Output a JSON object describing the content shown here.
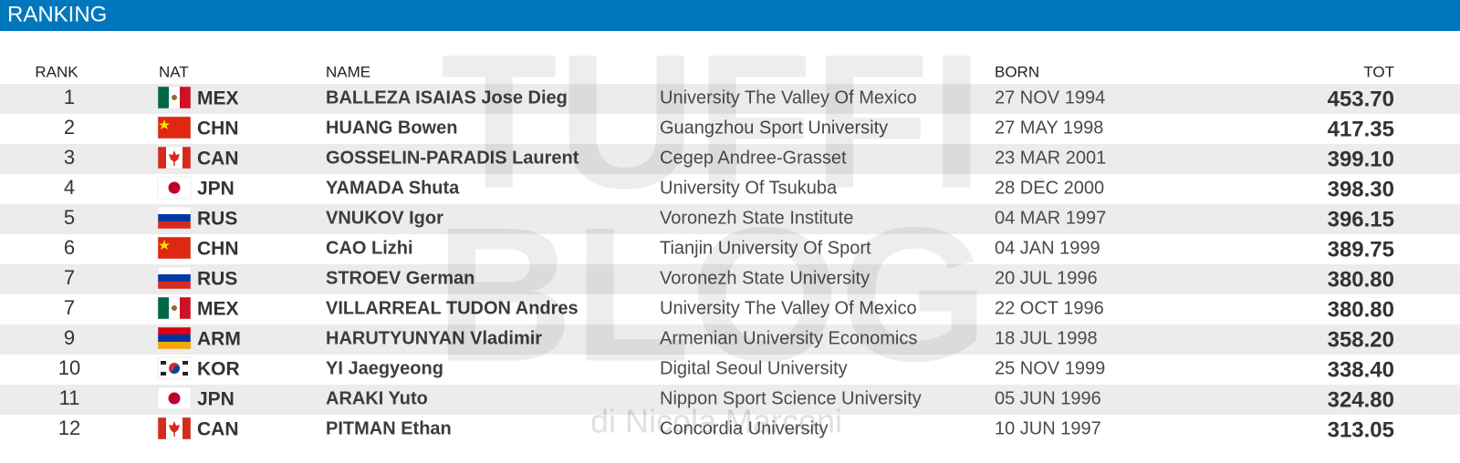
{
  "header": {
    "title": "RANKING"
  },
  "table": {
    "columns": [
      "RANK",
      "NAT",
      "NAME",
      "BORN",
      "TOT"
    ],
    "rows": [
      {
        "rank": 1,
        "nat": "MEX",
        "name": "BALLEZA ISAIAS Jose Dieg",
        "university": "University The Valley Of Mexico",
        "born": "27 NOV 1994",
        "tot": "453.70"
      },
      {
        "rank": 2,
        "nat": "CHN",
        "name": "HUANG Bowen",
        "university": "Guangzhou Sport University",
        "born": "27 MAY 1998",
        "tot": "417.35"
      },
      {
        "rank": 3,
        "nat": "CAN",
        "name": "GOSSELIN-PARADIS Laurent",
        "university": "Cegep Andree-Grasset",
        "born": "23 MAR 2001",
        "tot": "399.10"
      },
      {
        "rank": 4,
        "nat": "JPN",
        "name": "YAMADA Shuta",
        "university": "University Of Tsukuba",
        "born": "28 DEC 2000",
        "tot": "398.30"
      },
      {
        "rank": 5,
        "nat": "RUS",
        "name": "VNUKOV Igor",
        "university": "Voronezh State Institute",
        "born": "04 MAR 1997",
        "tot": "396.15"
      },
      {
        "rank": 6,
        "nat": "CHN",
        "name": "CAO Lizhi",
        "university": "Tianjin University Of Sport",
        "born": "04 JAN 1999",
        "tot": "389.75"
      },
      {
        "rank": 7,
        "nat": "RUS",
        "name": "STROEV German",
        "university": "Voronezh State University",
        "born": "20 JUL 1996",
        "tot": "380.80"
      },
      {
        "rank": 7,
        "nat": "MEX",
        "name": "VILLARREAL TUDON Andres",
        "university": "University The Valley Of Mexico",
        "born": "22 OCT 1996",
        "tot": "380.80"
      },
      {
        "rank": 9,
        "nat": "ARM",
        "name": "HARUTYUNYAN Vladimir",
        "university": "Armenian University Economics",
        "born": "18 JUL 1998",
        "tot": "358.20"
      },
      {
        "rank": 10,
        "nat": "KOR",
        "name": "YI Jaegyeong",
        "university": "Digital Seoul University",
        "born": "25 NOV 1999",
        "tot": "338.40"
      },
      {
        "rank": 11,
        "nat": "JPN",
        "name": "ARAKI Yuto",
        "university": "Nippon Sport Science University",
        "born": "05 JUN 1996",
        "tot": "324.80"
      },
      {
        "rank": 12,
        "nat": "CAN",
        "name": "PITMAN Ethan",
        "university": "Concordia University",
        "born": "10 JUN 1997",
        "tot": "313.05"
      }
    ]
  },
  "watermark": {
    "line1": "TUFFI",
    "line2": "BLOG",
    "byline": "di Nicola Marconi"
  }
}
